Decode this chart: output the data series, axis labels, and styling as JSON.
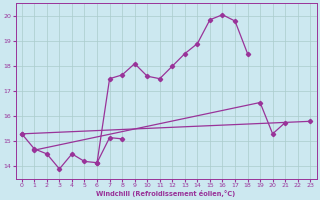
{
  "bg_color": "#cce8f0",
  "grid_color": "#aacccc",
  "line_color": "#993399",
  "xlim": [
    -0.5,
    23.5
  ],
  "ylim": [
    13.5,
    20.5
  ],
  "xticks": [
    0,
    1,
    2,
    3,
    4,
    5,
    6,
    7,
    8,
    9,
    10,
    11,
    12,
    13,
    14,
    15,
    16,
    17,
    18,
    19,
    20,
    21,
    22,
    23
  ],
  "yticks": [
    14,
    15,
    16,
    17,
    18,
    19,
    20
  ],
  "xlabel": "Windchill (Refroidissement éolien,°C)",
  "series": {
    "zigzag": {
      "x": [
        0,
        1,
        2,
        3,
        4,
        5,
        6,
        7,
        8
      ],
      "y": [
        15.3,
        14.7,
        14.5,
        13.9,
        14.5,
        14.2,
        14.15,
        15.15,
        15.1
      ]
    },
    "hump": {
      "x": [
        6,
        7,
        8,
        9,
        10,
        11,
        12,
        13,
        14,
        15,
        16,
        17,
        18
      ],
      "y": [
        14.15,
        17.5,
        17.65,
        18.1,
        17.6,
        17.5,
        18.0,
        18.5,
        18.9,
        19.85,
        20.05,
        19.8,
        18.5
      ]
    },
    "diag_low": {
      "x": [
        0,
        23
      ],
      "y": [
        15.3,
        15.8
      ]
    },
    "diag_mid": {
      "x": [
        1,
        19,
        20,
        21
      ],
      "y": [
        14.65,
        16.55,
        15.3,
        15.75
      ]
    }
  }
}
